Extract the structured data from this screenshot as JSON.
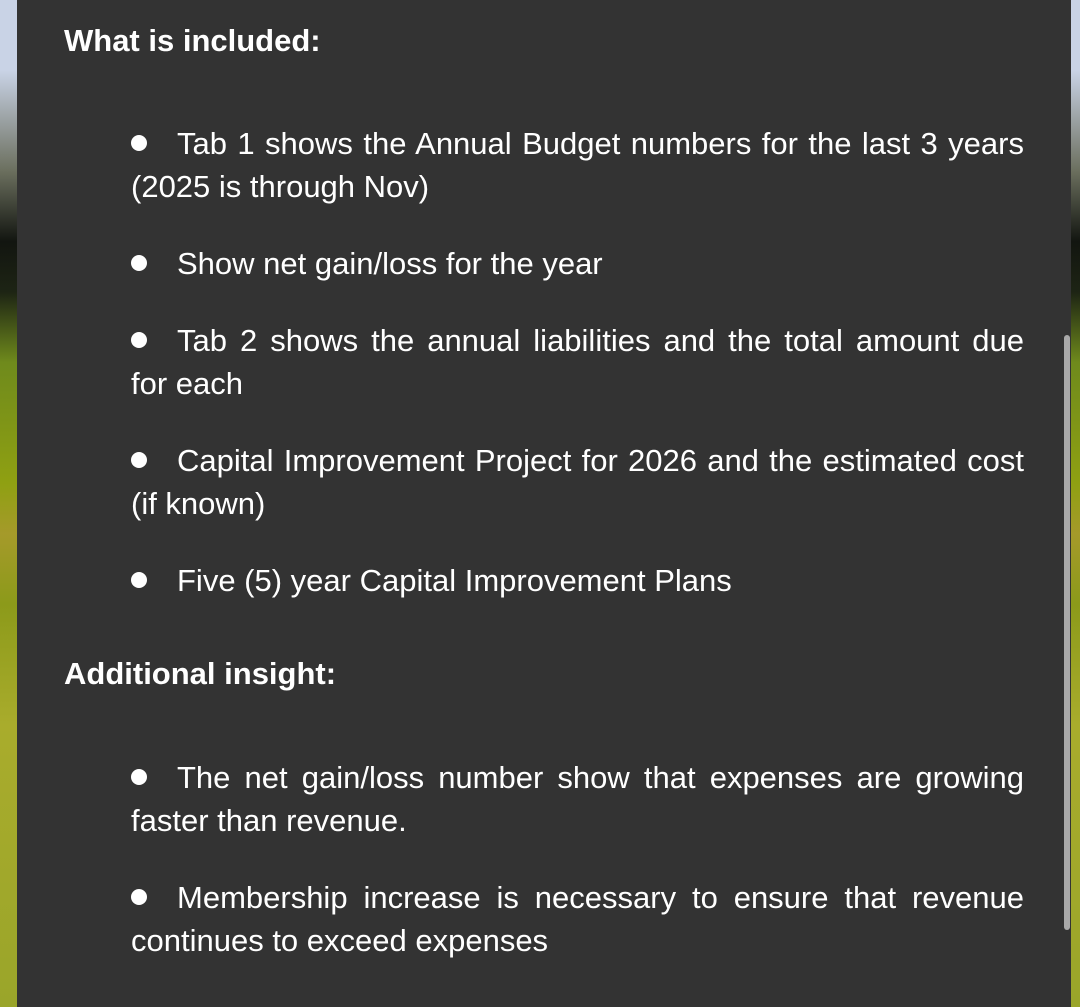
{
  "sections": [
    {
      "heading": "What is included:",
      "bullets": [
        "Tab 1 shows the Annual Budget numbers for the last 3 years (2025 is through Nov)",
        "Show net gain/loss for the year",
        "Tab 2 shows the annual liabilities and the total amount due for each",
        "Capital Improvement Project for 2026 and the estimated cost (if known)",
        "Five (5) year Capital Improvement Plans"
      ]
    },
    {
      "heading": "Additional insight:",
      "bullets": [
        "The net gain/loss number show that expenses are growing faster than revenue.",
        "Membership increase is necessary to ensure that revenue continues to exceed expenses"
      ]
    }
  ]
}
